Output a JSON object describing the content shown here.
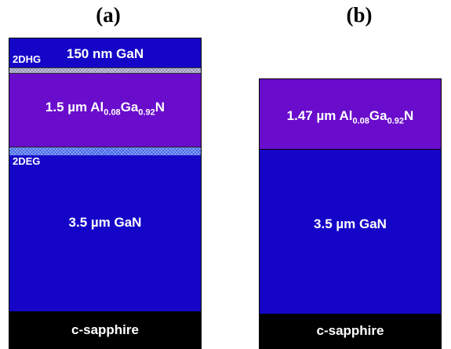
{
  "panels": {
    "a": {
      "label": "(a)",
      "layers": {
        "gan_top": "150 nm GaN",
        "tag_2dhg": "2DHG",
        "algan_prefix": "1.5 µm Al",
        "algan_sub1": "0.08",
        "algan_mid": "Ga",
        "algan_sub2": "0.92",
        "algan_suffix": "N",
        "tag_2deg": "2DEG",
        "gan_bottom": "3.5 µm GaN",
        "substrate": "c-sapphire"
      }
    },
    "b": {
      "label": "(b)",
      "layers": {
        "algan_prefix": "1.47 µm Al",
        "algan_sub1": "0.08",
        "algan_mid": "Ga",
        "algan_sub2": "0.92",
        "algan_suffix": "N",
        "gan": "3.5 µm GaN",
        "substrate": "c-sapphire"
      }
    }
  },
  "colors": {
    "gan": "#1506c7",
    "algan": "#6a0ccc",
    "substrate": "#000000",
    "two_dhg_strip": "#c9c9de",
    "two_deg_strip": "#3a5ee8"
  }
}
